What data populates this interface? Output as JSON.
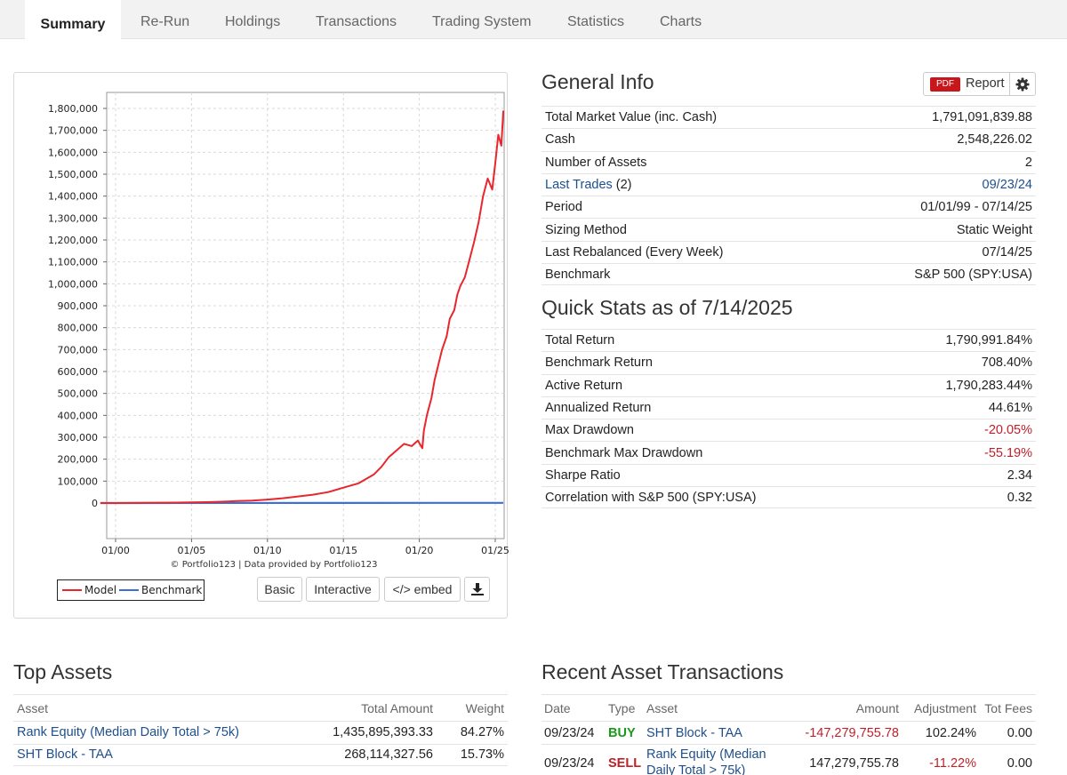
{
  "tabs": [
    "Summary",
    "Re-Run",
    "Holdings",
    "Transactions",
    "Trading System",
    "Statistics",
    "Charts"
  ],
  "chart_data": {
    "type": "line",
    "y_ticks": [
      "0",
      "100,000",
      "200,000",
      "300,000",
      "400,000",
      "500,000",
      "600,000",
      "700,000",
      "800,000",
      "900,000",
      "1,000,000",
      "1,100,000",
      "1,200,000",
      "1,300,000",
      "1,400,000",
      "1,500,000",
      "1,600,000",
      "1,700,000",
      "1,800,000"
    ],
    "x_ticks": [
      "01/00",
      "01/05",
      "01/10",
      "01/15",
      "01/20",
      "01/25"
    ],
    "ylim": [
      0,
      1800000
    ],
    "grid": true,
    "legend_placement": "bottom-left",
    "series": [
      {
        "name": "Model",
        "color": "#e8262b",
        "x": [
          1999.0,
          2000.0,
          2002.0,
          2004.0,
          2006.0,
          2007.0,
          2008.0,
          2009.0,
          2010.0,
          2011.0,
          2012.0,
          2013.0,
          2014.0,
          2015.0,
          2016.0,
          2017.0,
          2017.5,
          2018.0,
          2018.5,
          2019.0,
          2019.5,
          2019.9,
          2020.2,
          2020.3,
          2020.5,
          2020.8,
          2021.0,
          2021.5,
          2021.8,
          2022.0,
          2022.3,
          2022.5,
          2022.7,
          2023.0,
          2023.3,
          2023.6,
          2023.9,
          2024.2,
          2024.5,
          2024.8,
          2025.0,
          2025.2,
          2025.4,
          2025.53
        ],
        "y": [
          0,
          200,
          800,
          2000,
          4000,
          6000,
          9000,
          11000,
          16000,
          22000,
          30000,
          38000,
          50000,
          70000,
          90000,
          130000,
          165000,
          210000,
          240000,
          270000,
          260000,
          285000,
          250000,
          330000,
          400000,
          480000,
          560000,
          700000,
          760000,
          840000,
          880000,
          950000,
          990000,
          1030000,
          1110000,
          1190000,
          1280000,
          1400000,
          1480000,
          1430000,
          1550000,
          1680000,
          1630000,
          1790000
        ]
      },
      {
        "name": "Benchmark",
        "color": "#3d6fd8",
        "x": [
          1999.0,
          2025.53
        ],
        "y": [
          100,
          800
        ]
      }
    ],
    "credit": "© Portfolio123 | Data provided by Portfolio123"
  },
  "chart_buttons": {
    "basic": "Basic",
    "interactive": "Interactive",
    "embed": "</> embed"
  },
  "report": {
    "badge": "PDF",
    "label": "Report"
  },
  "general_info": {
    "title": "General Info",
    "rows": [
      {
        "label": "Total Market Value (inc. Cash)",
        "value": "1,791,091,839.88"
      },
      {
        "label": "Cash",
        "value": "2,548,226.02"
      },
      {
        "label": "Number of Assets",
        "value": "2"
      },
      {
        "label": "Last Trades",
        "label_suffix": " (2)",
        "value": "09/23/24"
      },
      {
        "label": "Period",
        "value": "01/01/99 - 07/14/25"
      },
      {
        "label": "Sizing Method",
        "value": "Static Weight"
      },
      {
        "label": "Last Rebalanced (Every Week)",
        "value": "07/14/25"
      },
      {
        "label": "Benchmark",
        "value": "S&P 500 (SPY:USA)"
      }
    ]
  },
  "quick_stats": {
    "title": "Quick Stats as of 7/14/2025",
    "rows": [
      {
        "label": "Total Return",
        "value": "1,790,991.84%"
      },
      {
        "label": "Benchmark Return",
        "value": "708.40%"
      },
      {
        "label": "Active Return",
        "value": "1,790,283.44%"
      },
      {
        "label": "Annualized Return",
        "value": "44.61%"
      },
      {
        "label": "Max Drawdown",
        "value": "-20.05%"
      },
      {
        "label": "Benchmark Max Drawdown",
        "value": "-55.19%"
      },
      {
        "label": "Sharpe Ratio",
        "value": "2.34"
      },
      {
        "label": "Correlation with S&P 500 (SPY:USA)",
        "value": "0.32"
      }
    ]
  },
  "top_assets": {
    "title": "Top Assets",
    "headers": {
      "asset": "Asset",
      "amount": "Total Amount",
      "weight": "Weight"
    },
    "rows": [
      {
        "asset": "Rank Equity (Median Daily Total > 75k)",
        "amount": "1,435,895,393.33",
        "weight": "84.27%"
      },
      {
        "asset": "SHT Block - TAA",
        "amount": "268,114,327.56",
        "weight": "15.73%"
      }
    ]
  },
  "recent_transactions": {
    "title": "Recent Asset Transactions",
    "headers": {
      "date": "Date",
      "type": "Type",
      "asset": "Asset",
      "amount": "Amount",
      "adjustment": "Adjustment",
      "fees": "Tot Fees"
    },
    "rows": [
      {
        "date": "09/23/24",
        "type": "BUY",
        "asset_line1": "SHT Block - TAA",
        "asset_line2": "",
        "amount": "-147,279,755.78",
        "adjustment": "102.24%",
        "fees": "0.00"
      },
      {
        "date": "09/23/24",
        "type": "SELL",
        "asset_line1": "Rank Equity (Median",
        "asset_line2": "Daily Total > 75k)",
        "amount": "147,279,755.78",
        "adjustment": "-11.22%",
        "fees": "0.00"
      }
    ]
  }
}
